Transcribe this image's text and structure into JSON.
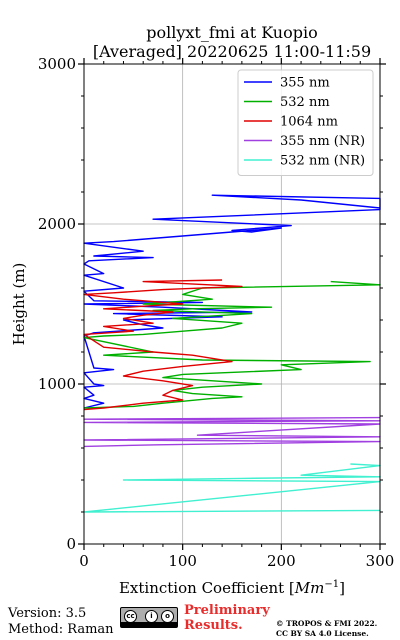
{
  "chart_data": {
    "type": "line",
    "title": "pollyxt_fmi at Kuopio",
    "subtitle": "[Averaged] 20220625 11:00-11:59",
    "xlabel": "Extinction Coefficient [Mm^-1]",
    "xlabel_parts": {
      "text": "Extinction Coefficient [",
      "unit_base": "Mm",
      "unit_exp": "−1",
      "close": "]"
    },
    "ylabel": "Height (m)",
    "xlim": [
      0,
      300
    ],
    "ylim": [
      0,
      3000
    ],
    "xticks": [
      0,
      100,
      200,
      300
    ],
    "yticks": [
      0,
      1000,
      2000,
      3000
    ],
    "grid": true,
    "legend_position": "top-right",
    "series": [
      {
        "name": "355 nm",
        "color": "#0000ff",
        "points": [
          [
            300,
            2100
          ],
          [
            220,
            2150
          ],
          [
            130,
            2180
          ],
          [
            310,
            2160
          ],
          [
            300,
            2090
          ],
          [
            70,
            2030
          ],
          [
            210,
            1990
          ],
          [
            150,
            1960
          ],
          [
            170,
            1950
          ],
          [
            200,
            1975
          ],
          [
            30,
            1890
          ],
          [
            0,
            1880
          ],
          [
            60,
            1830
          ],
          [
            10,
            1800
          ],
          [
            70,
            1790
          ],
          [
            5,
            1770
          ],
          [
            0,
            1750
          ],
          [
            20,
            1690
          ],
          [
            0,
            1680
          ],
          [
            40,
            1600
          ],
          [
            0,
            1580
          ],
          [
            10,
            1520
          ],
          [
            120,
            1510
          ],
          [
            0,
            1500
          ],
          [
            80,
            1480
          ],
          [
            170,
            1450
          ],
          [
            30,
            1440
          ],
          [
            140,
            1420
          ],
          [
            40,
            1400
          ],
          [
            60,
            1370
          ],
          [
            80,
            1350
          ],
          [
            10,
            1320
          ],
          [
            0,
            1300
          ],
          [
            10,
            1100
          ],
          [
            30,
            1090
          ],
          [
            0,
            1070
          ],
          [
            10,
            1000
          ],
          [
            20,
            990
          ],
          [
            0,
            980
          ],
          [
            10,
            930
          ],
          [
            0,
            910
          ],
          [
            20,
            880
          ],
          [
            0,
            850
          ]
        ]
      },
      {
        "name": "532 nm",
        "color": "#00b000",
        "points": [
          [
            250,
            1640
          ],
          [
            310,
            1620
          ],
          [
            120,
            1600
          ],
          [
            100,
            1560
          ],
          [
            130,
            1530
          ],
          [
            60,
            1500
          ],
          [
            190,
            1480
          ],
          [
            110,
            1470
          ],
          [
            70,
            1460
          ],
          [
            170,
            1440
          ],
          [
            90,
            1410
          ],
          [
            160,
            1380
          ],
          [
            140,
            1350
          ],
          [
            100,
            1330
          ],
          [
            60,
            1310
          ],
          [
            20,
            1300
          ],
          [
            0,
            1290
          ],
          [
            70,
            1200
          ],
          [
            20,
            1180
          ],
          [
            120,
            1150
          ],
          [
            290,
            1140
          ],
          [
            200,
            1120
          ],
          [
            220,
            1090
          ],
          [
            100,
            1060
          ],
          [
            80,
            1040
          ],
          [
            180,
            1000
          ],
          [
            120,
            980
          ],
          [
            90,
            960
          ],
          [
            110,
            940
          ],
          [
            160,
            920
          ],
          [
            130,
            910
          ],
          [
            80,
            880
          ],
          [
            50,
            860
          ],
          [
            0,
            850
          ]
        ]
      },
      {
        "name": "1064 nm",
        "color": "#e00000",
        "points": [
          [
            140,
            1650
          ],
          [
            60,
            1640
          ],
          [
            160,
            1610
          ],
          [
            80,
            1590
          ],
          [
            30,
            1570
          ],
          [
            0,
            1560
          ],
          [
            40,
            1530
          ],
          [
            100,
            1500
          ],
          [
            70,
            1490
          ],
          [
            20,
            1470
          ],
          [
            90,
            1450
          ],
          [
            60,
            1430
          ],
          [
            40,
            1410
          ],
          [
            70,
            1380
          ],
          [
            20,
            1360
          ],
          [
            50,
            1330
          ],
          [
            0,
            1310
          ],
          [
            20,
            1230
          ],
          [
            70,
            1200
          ],
          [
            110,
            1180
          ],
          [
            150,
            1140
          ],
          [
            100,
            1110
          ],
          [
            60,
            1080
          ],
          [
            40,
            1050
          ],
          [
            80,
            1020
          ],
          [
            110,
            990
          ],
          [
            90,
            960
          ],
          [
            80,
            930
          ],
          [
            100,
            900
          ],
          [
            60,
            880
          ],
          [
            20,
            850
          ],
          [
            0,
            840
          ]
        ]
      },
      {
        "name": "355 nm (NR)",
        "color": "#a040e0",
        "points": [
          [
            300,
            790
          ],
          [
            0,
            780
          ],
          [
            300,
            770
          ],
          [
            0,
            760
          ],
          [
            300,
            750
          ],
          [
            115,
            680
          ],
          [
            300,
            670
          ],
          [
            0,
            650
          ],
          [
            300,
            640
          ],
          [
            75,
            620
          ],
          [
            0,
            610
          ]
        ]
      },
      {
        "name": "532 nm (NR)",
        "color": "#40f0d0",
        "points": [
          [
            270,
            500
          ],
          [
            300,
            490
          ],
          [
            220,
            430
          ],
          [
            300,
            420
          ],
          [
            160,
            410
          ],
          [
            40,
            400
          ],
          [
            300,
            390
          ],
          [
            0,
            200
          ],
          [
            300,
            210
          ]
        ]
      }
    ]
  },
  "footer": {
    "version": "Version: 3.5",
    "method": "Method: Raman",
    "prelim_line1": "Preliminary",
    "prelim_line2": "Results.",
    "copyright_line1": "© TROPOS & FMI 2022.",
    "copyright_line2": "CC BY SA 4.0 License."
  }
}
